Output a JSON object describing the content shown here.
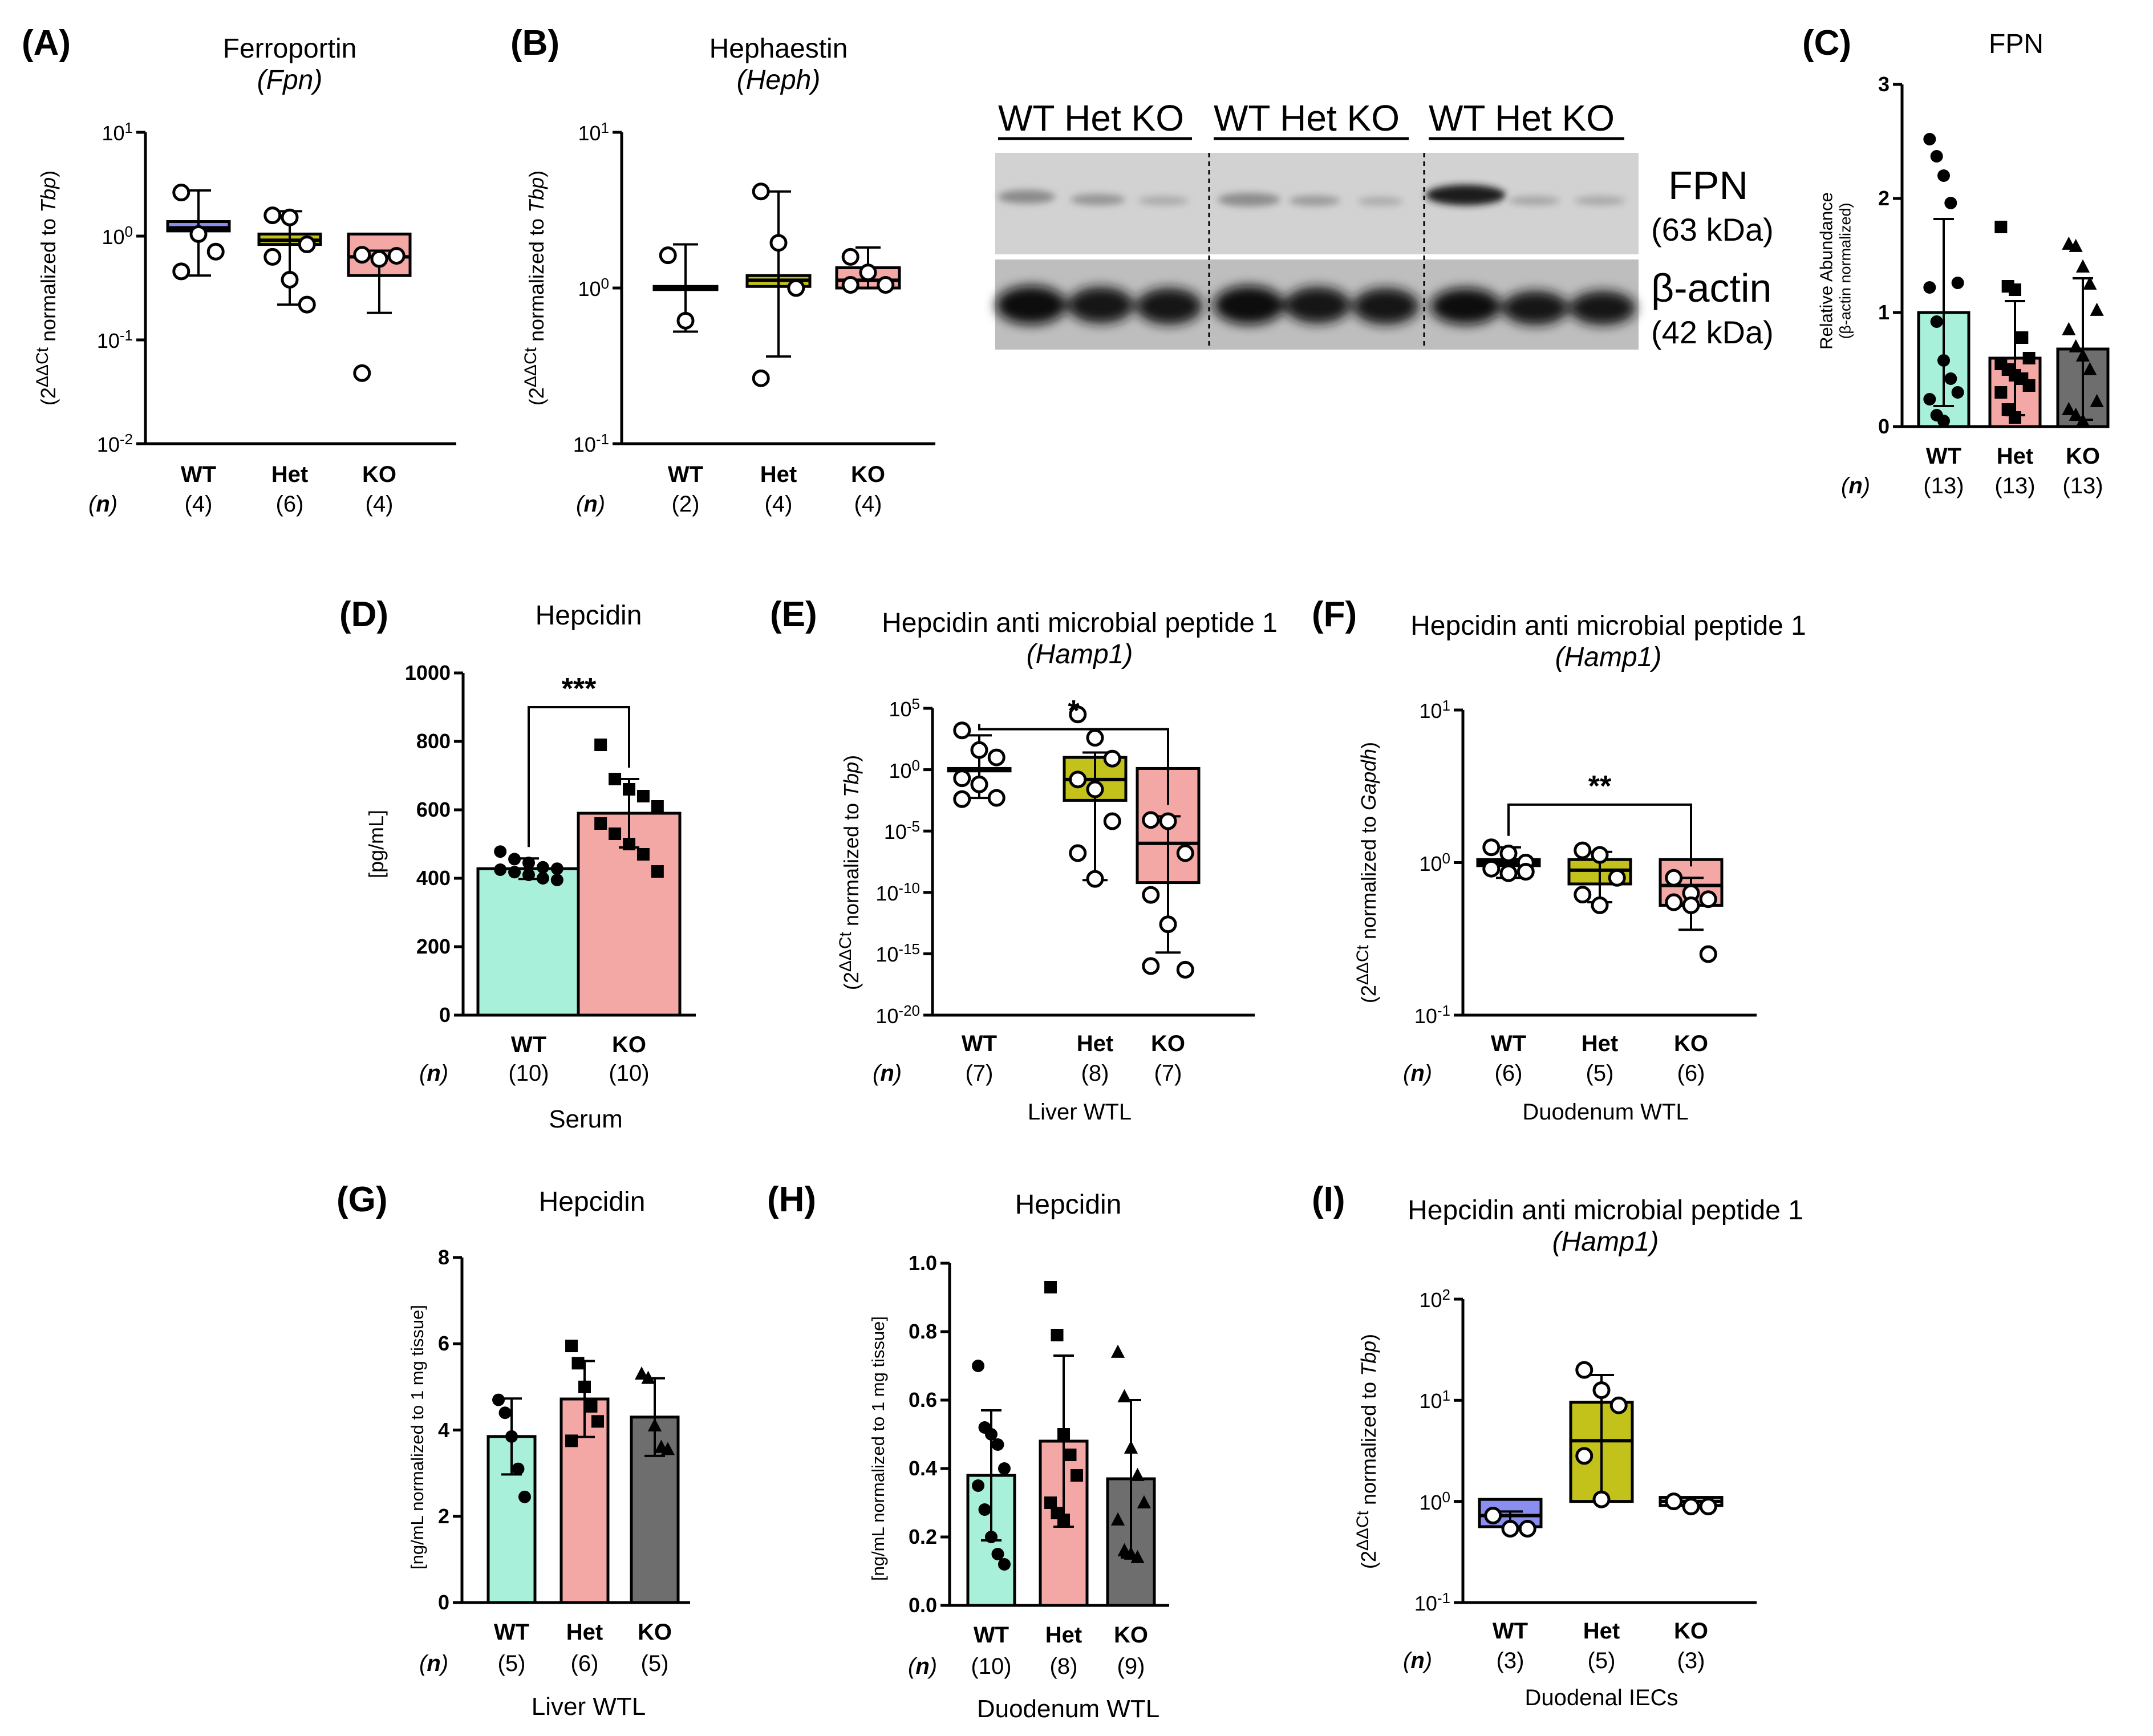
{
  "figure": {
    "panels": {
      "A": {
        "label": "(A)",
        "title": "Ferroportin",
        "gene": "Fpn"
      },
      "B": {
        "label": "(B)",
        "title": "Hephaestin",
        "gene": "Heph"
      },
      "C": {
        "label": "(C)",
        "title": "FPN"
      },
      "D": {
        "label": "(D)",
        "title": "Hepcidin",
        "caption": "Serum"
      },
      "E": {
        "label": "(E)",
        "title": "Hepcidin anti microbial peptide 1",
        "gene": "Hamp1",
        "caption": "Liver WTL"
      },
      "F": {
        "label": "(F)",
        "title": "Hepcidin anti microbial peptide 1",
        "gene": "Hamp1",
        "caption": "Duodenum  WTL"
      },
      "G": {
        "label": "(G)",
        "title": "Hepcidin",
        "caption": "Liver WTL"
      },
      "H": {
        "label": "(H)",
        "title": "Hepcidin",
        "caption": "Duodenum WTL"
      },
      "I": {
        "label": "(I)",
        "title": "Hepcidin anti microbial peptide 1",
        "gene": "Hamp1",
        "caption": "Duodenal IECs"
      }
    },
    "n_key": "n",
    "ylabels": {
      "tbp": {
        "pre": "(2",
        "sup": "ΔΔCt",
        "mid": " normalized to ",
        "gene": "Tbp",
        "post": ")"
      },
      "gapdh": {
        "pre": "(2",
        "sup": "ΔΔCt",
        "mid": " normalized to ",
        "gene": "Gapdh",
        "post": ")"
      },
      "C": {
        "line1": "Relative Abundance",
        "line2": "(β-actin normalized)"
      },
      "D": "[pg/mL]",
      "G": "[ng/mL normalized to 1 mg tissue]",
      "H": "[ng/mL normalized to 1 mg tissue]"
    },
    "blot": {
      "groups": [
        {
          "lanes": "WT Het KO"
        },
        {
          "lanes": "WT Het KO"
        },
        {
          "lanes": "WT Het KO"
        }
      ],
      "bands": [
        {
          "name": "FPN",
          "size": "(63 kDa)"
        },
        {
          "name": "β-actin",
          "size": "(42 kDa)"
        }
      ]
    },
    "colors": {
      "WT_qpcr": "#8a8ef0",
      "Het": "#c2c21a",
      "KO": "#f4a8a6",
      "WT_protein": "#a8f0da",
      "KO_grey": "#6e6e6e"
    }
  },
  "chart_data": [
    {
      "panel": "A",
      "type": "box",
      "scale": "log10",
      "ylim_exp": [
        -2,
        1
      ],
      "yticks": [
        {
          "base": "10",
          "exp": "1",
          "v": 1
        },
        {
          "base": "10",
          "exp": "0",
          "v": 0
        },
        {
          "base": "10",
          "exp": "-1",
          "v": -1
        },
        {
          "base": "10",
          "exp": "-2",
          "v": -2
        }
      ],
      "ylabel_key": "tbp",
      "categories": [
        "WT",
        "Het",
        "KO"
      ],
      "n": [
        "(4)",
        "(6)",
        "(4)"
      ],
      "series": [
        {
          "name": "WT",
          "color": "WT_qpcr",
          "q1": 0.05,
          "q3": 0.14,
          "median": 0.08,
          "whisker": [
            -0.38,
            0.44
          ],
          "points": [
            0.42,
            0.02,
            -0.15,
            -0.34
          ]
        },
        {
          "name": "Het",
          "color": "Het",
          "q1": -0.08,
          "q3": 0.02,
          "median": -0.04,
          "whisker": [
            -0.66,
            0.24
          ],
          "points": [
            0.2,
            0.18,
            -0.08,
            -0.2,
            -0.42,
            -0.66
          ]
        },
        {
          "name": "KO",
          "color": "KO",
          "q1": -0.38,
          "q3": 0.02,
          "median": -0.2,
          "whisker": [
            -0.74,
            -0.14
          ],
          "points": [
            -0.18,
            -0.22,
            -0.19,
            -1.32
          ]
        }
      ]
    },
    {
      "panel": "B",
      "type": "box",
      "scale": "log10",
      "ylim_exp": [
        -1,
        1
      ],
      "yticks": [
        {
          "base": "10",
          "exp": "1",
          "v": 1
        },
        {
          "base": "10",
          "exp": "0",
          "v": 0
        },
        {
          "base": "10",
          "exp": "-1",
          "v": -1
        }
      ],
      "ylabel_key": "tbp",
      "categories": [
        "WT",
        "Het",
        "KO"
      ],
      "n": [
        "(2)",
        "(4)",
        "(4)"
      ],
      "series": [
        {
          "name": "WT",
          "color": "WT_qpcr",
          "q1": -0.01,
          "q3": 0.01,
          "median": 0.0,
          "whisker": [
            -0.28,
            0.28
          ],
          "points": [
            0.21,
            -0.21
          ]
        },
        {
          "name": "Het",
          "color": "Het",
          "q1": 0.01,
          "q3": 0.08,
          "median": 0.05,
          "whisker": [
            -0.44,
            0.62
          ],
          "points": [
            0.62,
            0.29,
            0.0,
            -0.58
          ]
        },
        {
          "name": "KO",
          "color": "KO",
          "q1": 0.0,
          "q3": 0.13,
          "median": 0.05,
          "whisker": [
            0.0,
            0.26
          ],
          "points": [
            0.2,
            0.1,
            0.02,
            0.02
          ]
        }
      ]
    },
    {
      "panel": "C",
      "type": "bar",
      "ylim": [
        0,
        3
      ],
      "yticks": [
        {
          "t": "0",
          "v": 0
        },
        {
          "t": "1",
          "v": 1
        },
        {
          "t": "2",
          "v": 2
        },
        {
          "t": "3",
          "v": 3
        }
      ],
      "categories": [
        "WT",
        "Het",
        "KO"
      ],
      "n": [
        "(13)",
        "(13)",
        "(13)"
      ],
      "series": [
        {
          "name": "WT",
          "color": "WT_protein",
          "value": 1.0,
          "sd": 0.82,
          "marker": "circle",
          "points": [
            2.52,
            2.37,
            2.2,
            1.96,
            1.26,
            1.22,
            0.92,
            0.58,
            0.42,
            0.3,
            0.24,
            0.1,
            0.05
          ]
        },
        {
          "name": "Het",
          "color": "KO",
          "value": 0.6,
          "sd": 0.5,
          "marker": "square",
          "points": [
            1.75,
            1.23,
            1.2,
            0.78,
            0.6,
            0.55,
            0.5,
            0.45,
            0.42,
            0.36,
            0.3,
            0.15,
            0.08
          ]
        },
        {
          "name": "KO",
          "color": "KO_grey",
          "value": 0.68,
          "sd": 0.62,
          "marker": "triangle",
          "points": [
            1.6,
            1.58,
            1.4,
            1.25,
            1.02,
            0.85,
            0.7,
            0.62,
            0.5,
            0.22,
            0.15,
            0.1,
            0.05
          ]
        }
      ]
    },
    {
      "panel": "D",
      "type": "bar",
      "ylim": [
        0,
        1000
      ],
      "yticks": [
        {
          "t": "0",
          "v": 0
        },
        {
          "t": "200",
          "v": 200
        },
        {
          "t": "400",
          "v": 400
        },
        {
          "t": "600",
          "v": 600
        },
        {
          "t": "800",
          "v": 800
        },
        {
          "t": "1000",
          "v": 1000
        }
      ],
      "categories": [
        "WT",
        "KO"
      ],
      "n": [
        "(10)",
        "(10)"
      ],
      "significance": "***",
      "sig_y": 900,
      "series": [
        {
          "name": "WT",
          "color": "WT_protein",
          "value": 428,
          "sd": 30,
          "marker": "circle",
          "points": [
            478,
            456,
            445,
            432,
            428,
            425,
            418,
            410,
            400,
            395
          ]
        },
        {
          "name": "KO",
          "color": "KO",
          "value": 590,
          "sd": 100,
          "marker": "square",
          "points": [
            790,
            690,
            660,
            640,
            610,
            560,
            530,
            500,
            470,
            420
          ]
        }
      ]
    },
    {
      "panel": "E",
      "type": "box",
      "scale": "log10",
      "ylim_exp": [
        -20,
        5
      ],
      "yticks": [
        {
          "base": "10",
          "exp": "5",
          "v": 5
        },
        {
          "base": "10",
          "exp": "0",
          "v": 0
        },
        {
          "base": "10",
          "exp": "-5",
          "v": -5
        },
        {
          "base": "10",
          "exp": "-10",
          "v": -10
        },
        {
          "base": "10",
          "exp": "-15",
          "v": -15
        },
        {
          "base": "10",
          "exp": "-20",
          "v": -20
        }
      ],
      "ylabel_key": "tbp",
      "categories": [
        "WT",
        "Het",
        "KO"
      ],
      "n": [
        "(7)",
        "(8)",
        "(7)"
      ],
      "significance": "*",
      "sig_y": 3.3,
      "series": [
        {
          "name": "WT",
          "color": "WT_qpcr",
          "q1": -0.1,
          "q3": 0.1,
          "median": 0.0,
          "whisker": [
            -2.3,
            2.8
          ],
          "points": [
            3.2,
            1.6,
            1.0,
            -0.7,
            -1.2,
            -2.3,
            -2.4
          ]
        },
        {
          "name": "Het",
          "color": "Het",
          "q1": -2.5,
          "q3": 1.0,
          "median": -0.8,
          "whisker": [
            -9.0,
            1.4
          ],
          "points": [
            4.5,
            2.6,
            0.9,
            -0.8,
            -1.6,
            -4.2,
            -6.8,
            -8.9
          ]
        },
        {
          "name": "KO",
          "color": "KO",
          "q1": -9.2,
          "q3": 0.1,
          "median": -6.0,
          "whisker": [
            -14.9,
            -3.8
          ],
          "points": [
            -4.1,
            -4.2,
            -6.8,
            -10.2,
            -12.6,
            -16.3,
            -16.0
          ]
        }
      ]
    },
    {
      "panel": "F",
      "type": "box",
      "scale": "log10",
      "ylim_exp": [
        -1,
        1
      ],
      "yticks": [
        {
          "base": "10",
          "exp": "1",
          "v": 1
        },
        {
          "base": "10",
          "exp": "0",
          "v": 0
        },
        {
          "base": "10",
          "exp": "-1",
          "v": -1
        }
      ],
      "ylabel_key": "gapdh",
      "categories": [
        "WT",
        "Het",
        "KO"
      ],
      "n": [
        "(6)",
        "(5)",
        "(6)"
      ],
      "significance": "**",
      "sig_y": 0.38,
      "series": [
        {
          "name": "WT",
          "color": "WT_qpcr",
          "q1": -0.02,
          "q3": 0.02,
          "median": 0.0,
          "whisker": [
            -0.1,
            0.1
          ],
          "points": [
            0.1,
            0.06,
            0.0,
            -0.04,
            -0.07,
            -0.06
          ]
        },
        {
          "name": "Het",
          "color": "Het",
          "q1": -0.14,
          "q3": 0.02,
          "median": -0.05,
          "whisker": [
            -0.26,
            0.07
          ],
          "points": [
            0.08,
            0.05,
            -0.1,
            -0.21,
            -0.28
          ]
        },
        {
          "name": "KO",
          "color": "KO",
          "q1": -0.28,
          "q3": 0.02,
          "median": -0.15,
          "whisker": [
            -0.44,
            -0.1
          ],
          "points": [
            -0.1,
            -0.2,
            -0.24,
            -0.26,
            -0.28,
            -0.6
          ]
        }
      ]
    },
    {
      "panel": "G",
      "type": "bar",
      "ylim": [
        0,
        8
      ],
      "yticks": [
        {
          "t": "0",
          "v": 0
        },
        {
          "t": "2",
          "v": 2
        },
        {
          "t": "4",
          "v": 4
        },
        {
          "t": "6",
          "v": 6
        },
        {
          "t": "8",
          "v": 8
        }
      ],
      "categories": [
        "WT",
        "Het",
        "KO"
      ],
      "n": [
        "(5)",
        "(6)",
        "(5)"
      ],
      "series": [
        {
          "name": "WT",
          "color": "WT_protein",
          "value": 3.85,
          "sd": 0.88,
          "marker": "circle",
          "points": [
            4.7,
            4.4,
            3.85,
            3.1,
            2.45
          ]
        },
        {
          "name": "Het",
          "color": "KO",
          "value": 4.72,
          "sd": 0.88,
          "marker": "square",
          "points": [
            5.95,
            5.55,
            5.0,
            4.55,
            4.2,
            3.75
          ]
        },
        {
          "name": "KO",
          "color": "KO_grey",
          "value": 4.3,
          "sd": 0.9,
          "marker": "triangle",
          "points": [
            5.3,
            5.2,
            4.1,
            3.6,
            3.55
          ]
        }
      ]
    },
    {
      "panel": "H",
      "type": "bar",
      "ylim": [
        0,
        1.0
      ],
      "yticks": [
        {
          "t": "0.0",
          "v": 0
        },
        {
          "t": "0.2",
          "v": 0.2
        },
        {
          "t": "0.4",
          "v": 0.4
        },
        {
          "t": "0.6",
          "v": 0.6
        },
        {
          "t": "0.8",
          "v": 0.8
        },
        {
          "t": "1.0",
          "v": 1.0
        }
      ],
      "categories": [
        "WT",
        "Het",
        "KO"
      ],
      "n": [
        "(10)",
        "(8)",
        "(9)"
      ],
      "series": [
        {
          "name": "WT",
          "color": "WT_protein",
          "value": 0.38,
          "sd": 0.19,
          "marker": "circle",
          "points": [
            0.7,
            0.52,
            0.5,
            0.47,
            0.4,
            0.35,
            0.28,
            0.2,
            0.15,
            0.12
          ]
        },
        {
          "name": "Het",
          "color": "KO",
          "value": 0.48,
          "sd": 0.25,
          "marker": "square",
          "points": [
            0.93,
            0.79,
            0.5,
            0.44,
            0.38,
            0.3,
            0.27,
            0.25
          ]
        },
        {
          "name": "KO",
          "color": "KO_grey",
          "value": 0.37,
          "sd": 0.23,
          "marker": "triangle",
          "points": [
            0.74,
            0.61,
            0.46,
            0.38,
            0.3,
            0.25,
            0.16,
            0.15,
            0.14
          ]
        }
      ]
    },
    {
      "panel": "I",
      "type": "box",
      "scale": "log10",
      "ylim_exp": [
        -1,
        2
      ],
      "yticks": [
        {
          "base": "10",
          "exp": "2",
          "v": 2
        },
        {
          "base": "10",
          "exp": "1",
          "v": 1
        },
        {
          "base": "10",
          "exp": "0",
          "v": 0
        },
        {
          "base": "10",
          "exp": "-1",
          "v": -1
        }
      ],
      "ylabel_key": "tbp",
      "categories": [
        "WT",
        "Het",
        "KO"
      ],
      "n": [
        "(3)",
        "(5)",
        "(3)"
      ],
      "series": [
        {
          "name": "WT",
          "color": "WT_qpcr",
          "q1": -0.25,
          "q3": 0.02,
          "median": -0.14,
          "whisker": [
            -0.25,
            -0.1
          ],
          "points": [
            -0.14,
            -0.27,
            -0.27
          ]
        },
        {
          "name": "Het",
          "color": "Het",
          "q1": 0.0,
          "q3": 0.98,
          "median": 0.6,
          "whisker": [
            0.0,
            1.25
          ],
          "points": [
            1.3,
            1.1,
            0.95,
            0.45,
            0.02
          ]
        },
        {
          "name": "KO",
          "color": "KO_grey_box",
          "q1": -0.04,
          "q3": 0.04,
          "median": 0.0,
          "whisker": [
            -0.04,
            0.04
          ],
          "points": [
            0.0,
            -0.05,
            -0.05
          ]
        }
      ]
    }
  ]
}
